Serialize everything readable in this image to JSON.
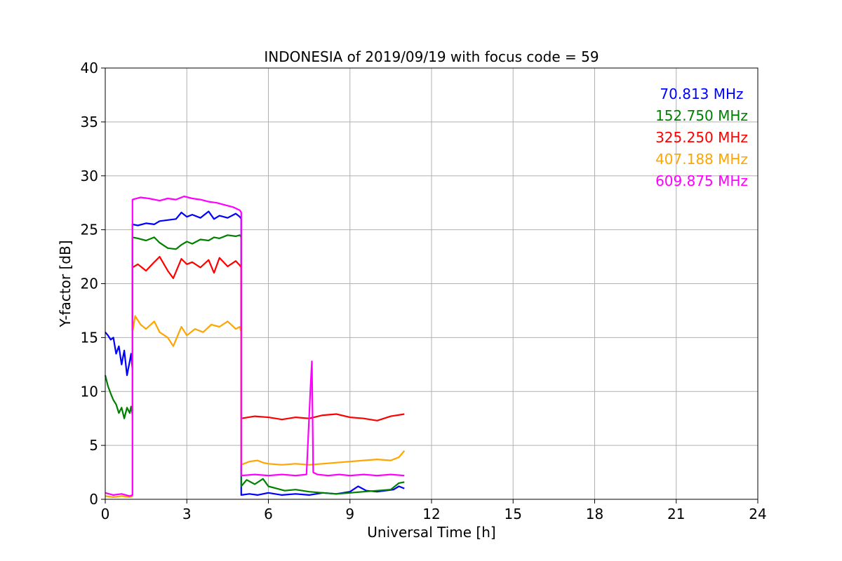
{
  "chart_data": {
    "type": "line",
    "title": "INDONESIA of 2019/09/19 with focus code = 59",
    "xlabel": "Universal Time [h]",
    "ylabel": "Y-factor [dB]",
    "xlim": [
      0,
      24
    ],
    "ylim": [
      0,
      40
    ],
    "xticks": [
      "0",
      "3",
      "6",
      "9",
      "12",
      "15",
      "18",
      "21",
      "24"
    ],
    "yticks": [
      "0",
      "5",
      "10",
      "15",
      "20",
      "25",
      "30",
      "35",
      "40"
    ],
    "grid": true,
    "legend_position": "top-right",
    "series": [
      {
        "name": "70.813 MHz",
        "color": "#0000ff",
        "x": [
          0,
          0.1,
          0.2,
          0.3,
          0.4,
          0.5,
          0.6,
          0.7,
          0.8,
          0.9,
          0.95,
          1.0,
          1.0,
          1.2,
          1.5,
          1.8,
          2.0,
          2.3,
          2.6,
          2.8,
          3.0,
          3.2,
          3.5,
          3.8,
          4.0,
          4.2,
          4.5,
          4.8,
          4.95,
          5.0,
          5.0,
          5.3,
          5.6,
          6.0,
          6.5,
          7.0,
          7.5,
          8.0,
          8.5,
          9.0,
          9.3,
          9.6,
          10.0,
          10.3,
          10.6,
          10.8,
          11.0
        ],
        "y": [
          15.5,
          15.2,
          14.8,
          15.0,
          13.5,
          14.2,
          12.5,
          13.8,
          11.5,
          12.8,
          13.5,
          12.0,
          25.5,
          25.4,
          25.6,
          25.5,
          25.8,
          25.9,
          26.0,
          26.6,
          26.2,
          26.4,
          26.1,
          26.7,
          26.0,
          26.3,
          26.1,
          26.5,
          26.2,
          26.0,
          0.4,
          0.5,
          0.4,
          0.6,
          0.4,
          0.5,
          0.4,
          0.6,
          0.5,
          0.7,
          1.2,
          0.8,
          0.7,
          0.8,
          0.9,
          1.2,
          1.0
        ]
      },
      {
        "name": "152.750 MHz",
        "color": "#008000",
        "x": [
          0,
          0.1,
          0.2,
          0.3,
          0.4,
          0.5,
          0.6,
          0.7,
          0.8,
          0.9,
          0.95,
          1.0,
          1.0,
          1.2,
          1.5,
          1.8,
          2.0,
          2.3,
          2.6,
          2.8,
          3.0,
          3.2,
          3.5,
          3.8,
          4.0,
          4.2,
          4.5,
          4.8,
          4.95,
          5.0,
          5.0,
          5.2,
          5.5,
          5.8,
          6.0,
          6.3,
          6.6,
          7.0,
          7.5,
          8.0,
          8.5,
          9.0,
          9.5,
          10.0,
          10.5,
          10.8,
          11.0
        ],
        "y": [
          11.5,
          10.5,
          9.8,
          9.2,
          8.8,
          8.0,
          8.5,
          7.5,
          8.5,
          8.0,
          8.6,
          7.8,
          24.3,
          24.2,
          24.0,
          24.3,
          23.8,
          23.3,
          23.2,
          23.6,
          23.9,
          23.7,
          24.1,
          24.0,
          24.3,
          24.2,
          24.5,
          24.4,
          24.5,
          24.3,
          1.2,
          1.8,
          1.4,
          1.9,
          1.2,
          1.0,
          0.8,
          0.9,
          0.7,
          0.6,
          0.5,
          0.6,
          0.7,
          0.8,
          0.9,
          1.5,
          1.6
        ]
      },
      {
        "name": "325.250 MHz",
        "color": "#ff0000",
        "x": [
          1.0,
          1.2,
          1.5,
          1.8,
          2.0,
          2.3,
          2.5,
          2.8,
          3.0,
          3.2,
          3.5,
          3.8,
          4.0,
          4.2,
          4.5,
          4.8,
          4.95,
          5.0,
          5.0,
          5.5,
          6.0,
          6.5,
          7.0,
          7.5,
          8.0,
          8.5,
          9.0,
          9.5,
          10.0,
          10.5,
          11.0
        ],
        "y": [
          21.5,
          21.8,
          21.2,
          22.0,
          22.5,
          21.2,
          20.5,
          22.3,
          21.8,
          22.0,
          21.5,
          22.2,
          21.0,
          22.4,
          21.6,
          22.1,
          21.7,
          21.5,
          7.5,
          7.7,
          7.6,
          7.4,
          7.6,
          7.5,
          7.8,
          7.9,
          7.6,
          7.5,
          7.3,
          7.7,
          7.9
        ]
      },
      {
        "name": "407.188 MHz",
        "color": "#ffa500",
        "x": [
          0,
          0.3,
          0.6,
          0.9,
          1.0,
          1.0,
          1.1,
          1.3,
          1.5,
          1.8,
          2.0,
          2.3,
          2.5,
          2.8,
          3.0,
          3.3,
          3.6,
          3.9,
          4.2,
          4.5,
          4.8,
          4.95,
          5.0,
          5.0,
          5.3,
          5.6,
          5.8,
          6.0,
          6.5,
          7.0,
          7.5,
          8.0,
          8.5,
          9.0,
          9.5,
          10.0,
          10.5,
          10.8,
          11.0
        ],
        "y": [
          0.3,
          0.2,
          0.3,
          0.2,
          0.3,
          15.5,
          17.0,
          16.2,
          15.8,
          16.5,
          15.5,
          15.0,
          14.2,
          16.0,
          15.2,
          15.8,
          15.5,
          16.2,
          16.0,
          16.5,
          15.8,
          16.0,
          15.5,
          3.2,
          3.5,
          3.6,
          3.4,
          3.3,
          3.2,
          3.3,
          3.2,
          3.3,
          3.4,
          3.5,
          3.6,
          3.7,
          3.6,
          3.9,
          4.5
        ]
      },
      {
        "name": "609.875 MHz",
        "color": "#ff00ff",
        "x": [
          0,
          0.3,
          0.6,
          0.9,
          1.0,
          1.0,
          1.3,
          1.6,
          2.0,
          2.3,
          2.6,
          2.9,
          3.2,
          3.5,
          3.8,
          4.1,
          4.4,
          4.7,
          4.95,
          5.0,
          5.0,
          5.5,
          6.0,
          6.5,
          7.0,
          7.4,
          7.55,
          7.6,
          7.65,
          7.8,
          8.2,
          8.6,
          9.0,
          9.5,
          10.0,
          10.5,
          11.0
        ],
        "y": [
          0.6,
          0.4,
          0.5,
          0.3,
          0.4,
          27.8,
          28.0,
          27.9,
          27.7,
          27.9,
          27.8,
          28.1,
          27.9,
          27.8,
          27.6,
          27.5,
          27.3,
          27.1,
          26.8,
          26.6,
          2.2,
          2.3,
          2.2,
          2.3,
          2.2,
          2.3,
          10.5,
          12.8,
          2.5,
          2.3,
          2.2,
          2.3,
          2.2,
          2.3,
          2.2,
          2.3,
          2.2
        ]
      }
    ]
  }
}
